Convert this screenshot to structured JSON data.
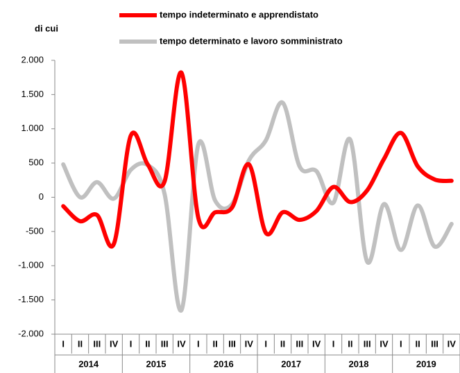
{
  "chart_data": {
    "type": "line",
    "subtitle": "di cui",
    "categories": [
      "I",
      "II",
      "III",
      "IV",
      "I",
      "II",
      "III",
      "IV",
      "I",
      "II",
      "III",
      "IV",
      "I",
      "II",
      "III",
      "IV",
      "I",
      "II",
      "III",
      "IV",
      "I",
      "II",
      "III",
      "IV"
    ],
    "year_groups": [
      "2014",
      "2015",
      "2016",
      "2017",
      "2018",
      "2019"
    ],
    "series": [
      {
        "name": "tempo indeterminato e apprendistato",
        "color": "#ff0000",
        "values": [
          -130,
          -350,
          -260,
          -680,
          900,
          480,
          230,
          1820,
          -300,
          -220,
          -150,
          480,
          -520,
          -220,
          -330,
          -200,
          150,
          -70,
          100,
          560,
          940,
          450,
          260,
          240
        ]
      },
      {
        "name": "tempo determinato e lavoro somministrato",
        "color": "#c0c0c0",
        "values": [
          480,
          0,
          220,
          -20,
          400,
          470,
          50,
          -1650,
          770,
          -50,
          -100,
          540,
          830,
          1380,
          450,
          380,
          -80,
          840,
          -940,
          -100,
          -770,
          -120,
          -720,
          -390
        ]
      }
    ],
    "ylim": [
      -2000,
      2000
    ],
    "yticks": [
      {
        "value": -2000,
        "label": "-2.000"
      },
      {
        "value": -1500,
        "label": "-1.500"
      },
      {
        "value": -1000,
        "label": "-1.000"
      },
      -500,
      0,
      500,
      {
        "value": 1000,
        "label": "1.000"
      },
      {
        "value": 1500,
        "label": "1.500"
      },
      {
        "value": 2000,
        "label": "2.000"
      }
    ],
    "grid": false
  }
}
